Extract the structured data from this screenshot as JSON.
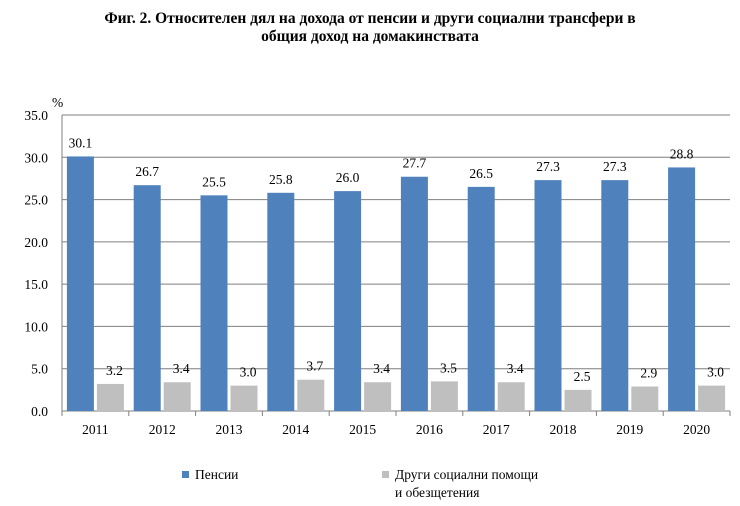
{
  "title_line1": "Фиг. 2. Относителен дял на дохода от пенсии и други социални трансфери в",
  "title_line2": "общия доход на домакинствата",
  "chart_data": {
    "type": "bar",
    "title": "Фиг. 2. Относителен дял на дохода от пенсии и други социални трансфери в общия доход на домакинствата",
    "ylabel": "%",
    "ylim": [
      0,
      35
    ],
    "yticks": [
      "0.0",
      "5.0",
      "10.0",
      "15.0",
      "20.0",
      "25.0",
      "30.0",
      "35.0"
    ],
    "grid": true,
    "legend_position": "bottom",
    "categories": [
      "2011",
      "2012",
      "2013",
      "2014",
      "2015",
      "2016",
      "2017",
      "2018",
      "2019",
      "2020"
    ],
    "series": [
      {
        "name": "Пенсии",
        "color": "#4f81bd",
        "values": [
          30.1,
          26.7,
          25.5,
          25.8,
          26.0,
          27.7,
          26.5,
          27.3,
          27.3,
          28.8
        ],
        "labels": [
          "30.1",
          "26.7",
          "25.5",
          "25.8",
          "26.0",
          "27.7",
          "26.5",
          "27.3",
          "27.3",
          "28.8"
        ]
      },
      {
        "name": "Други социални помощи и обезщетения",
        "name_lines": [
          "Други социални помощи",
          "и обезщетения"
        ],
        "color": "#bfbfbf",
        "values": [
          3.2,
          3.4,
          3.0,
          3.7,
          3.4,
          3.5,
          3.4,
          2.5,
          2.9,
          3.0
        ],
        "labels": [
          "3.2",
          "3.4",
          "3.0",
          "3.7",
          "3.4",
          "3.5",
          "3.4",
          "2.5",
          "2.9",
          "3.0"
        ]
      }
    ]
  }
}
